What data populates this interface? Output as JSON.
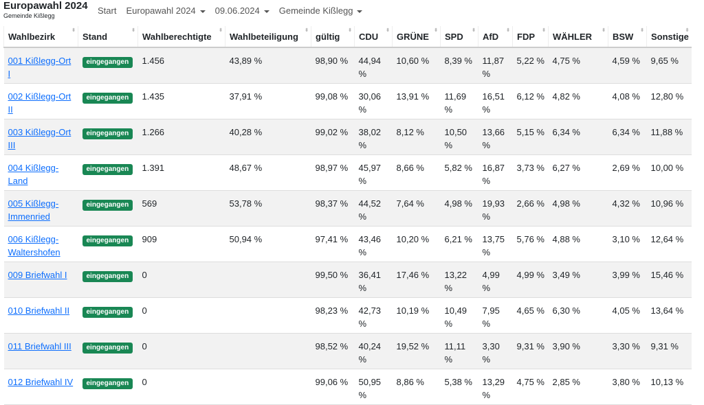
{
  "header": {
    "title": "Europawahl 2024",
    "subtitle": "Gemeinde Kißlegg",
    "nav": [
      "Start",
      "Europawahl 2024",
      "09.06.2024",
      "Gemeinde Kißlegg"
    ]
  },
  "table": {
    "columns": [
      "Wahlbezirk",
      "Stand",
      "Wahlberechtigte",
      "Wahlbeteiligung",
      "gültig",
      "CDU",
      "GRÜNE",
      "SPD",
      "AfD",
      "FDP",
      "WÄHLER",
      "BSW",
      "Sonstige"
    ],
    "rows": [
      [
        "001 Kißlegg-Ort I",
        "eingegangen",
        "1.456",
        "43,89 %",
        "98,90 %",
        "44,94 %",
        "10,60 %",
        "8,39 %",
        "11,87 %",
        "5,22 %",
        "4,75 %",
        "4,59 %",
        "9,65 %"
      ],
      [
        "002 Kißlegg-Ort II",
        "eingegangen",
        "1.435",
        "37,91 %",
        "99,08 %",
        "30,06 %",
        "13,91 %",
        "11,69 %",
        "16,51 %",
        "6,12 %",
        "4,82 %",
        "4,08 %",
        "12,80 %"
      ],
      [
        "003 Kißlegg-Ort III",
        "eingegangen",
        "1.266",
        "40,28 %",
        "99,02 %",
        "38,02 %",
        "8,12 %",
        "10,50 %",
        "13,66 %",
        "5,15 %",
        "6,34 %",
        "6,34 %",
        "11,88 %"
      ],
      [
        "004 Kißlegg-Land",
        "eingegangen",
        "1.391",
        "48,67 %",
        "98,97 %",
        "45,97 %",
        "8,66 %",
        "5,82 %",
        "16,87 %",
        "3,73 %",
        "6,27 %",
        "2,69 %",
        "10,00 %"
      ],
      [
        "005 Kißlegg-Immenried",
        "eingegangen",
        "569",
        "53,78 %",
        "98,37 %",
        "44,52 %",
        "7,64 %",
        "4,98 %",
        "19,93 %",
        "2,66 %",
        "4,98 %",
        "4,32 %",
        "10,96 %"
      ],
      [
        "006 Kißlegg-Waltershofen",
        "eingegangen",
        "909",
        "50,94 %",
        "97,41 %",
        "43,46 %",
        "10,20 %",
        "6,21 %",
        "13,75 %",
        "5,76 %",
        "4,88 %",
        "3,10 %",
        "12,64 %"
      ],
      [
        "009 Briefwahl I",
        "eingegangen",
        "0",
        null,
        "99,50 %",
        "36,41 %",
        "17,46 %",
        "13,22 %",
        "4,99 %",
        "4,99 %",
        "3,49 %",
        "3,99 %",
        "15,46 %"
      ],
      [
        "010 Briefwahl II",
        "eingegangen",
        "0",
        null,
        "98,23 %",
        "42,73 %",
        "10,19 %",
        "10,49 %",
        "7,95 %",
        "4,65 %",
        "6,30 %",
        "4,05 %",
        "13,64 %"
      ],
      [
        "011 Briefwahl III",
        "eingegangen",
        "0",
        null,
        "98,52 %",
        "40,24 %",
        "19,52 %",
        "11,11 %",
        "3,30 %",
        "9,31 %",
        "3,90 %",
        "3,30 %",
        "9,31 %"
      ],
      [
        "012 Briefwahl IV",
        "eingegangen",
        "0",
        null,
        "99,06 %",
        "50,95 %",
        "8,86 %",
        "5,38 %",
        "13,29 %",
        "4,75 %",
        "2,85 %",
        "3,80 %",
        "10,13 %"
      ]
    ]
  }
}
